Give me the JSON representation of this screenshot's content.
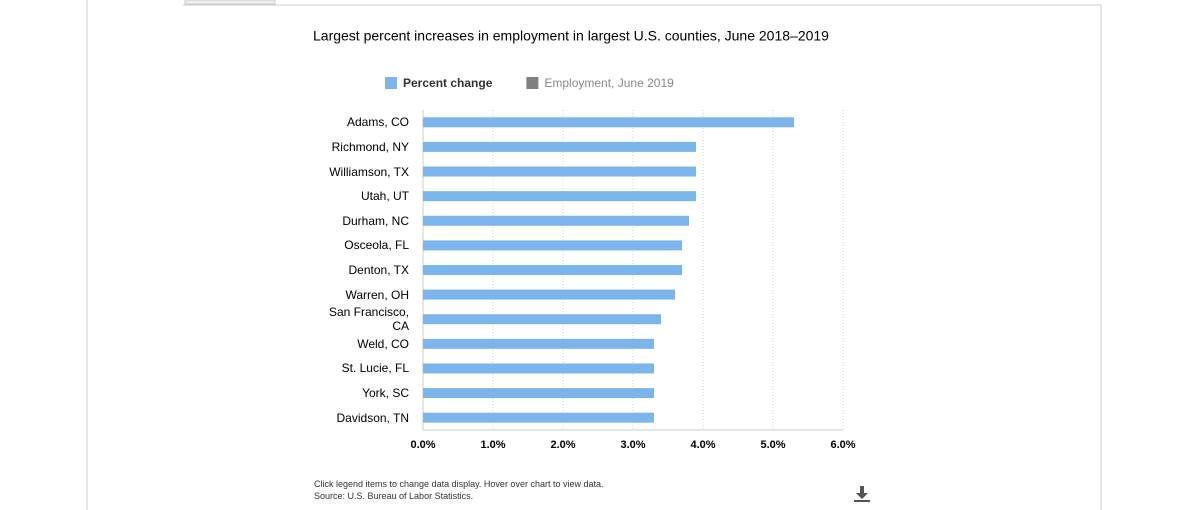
{
  "chart_data": {
    "type": "bar",
    "orientation": "horizontal",
    "title": "Largest percent increases in employment in largest U.S. counties, June 2018–2019",
    "categories": [
      "Adams, CO",
      "Richmond, NY",
      "Williamson, TX",
      "Utah, UT",
      "Durham, NC",
      "Osceola, FL",
      "Denton, TX",
      "Warren, OH",
      "San Francisco, CA",
      "Weld, CO",
      "St. Lucie, FL",
      "York, SC",
      "Davidson, TN"
    ],
    "series": [
      {
        "name": "Percent change",
        "color": "#7cb5ec",
        "visible": true,
        "values": [
          5.3,
          3.9,
          3.9,
          3.9,
          3.8,
          3.7,
          3.7,
          3.6,
          3.4,
          3.3,
          3.3,
          3.3,
          3.3
        ]
      },
      {
        "name": "Employment, June 2019",
        "color": "#808080",
        "visible": false,
        "values": [
          null,
          null,
          null,
          null,
          null,
          null,
          null,
          null,
          null,
          null,
          null,
          null,
          null
        ]
      }
    ],
    "xlim": [
      0,
      6
    ],
    "xticks": [
      {
        "value": 0,
        "label": "0.0%"
      },
      {
        "value": 1,
        "label": "1.0%"
      },
      {
        "value": 2,
        "label": "2.0%"
      },
      {
        "value": 3,
        "label": "3.0%"
      },
      {
        "value": 4,
        "label": "4.0%"
      },
      {
        "value": 5,
        "label": "5.0%"
      },
      {
        "value": 6,
        "label": "6.0%"
      }
    ],
    "grid": true,
    "notes": [
      "Click legend items to change data display. Hover over chart to view data.",
      "Source: U.S. Bureau of Labor Statistics."
    ]
  }
}
